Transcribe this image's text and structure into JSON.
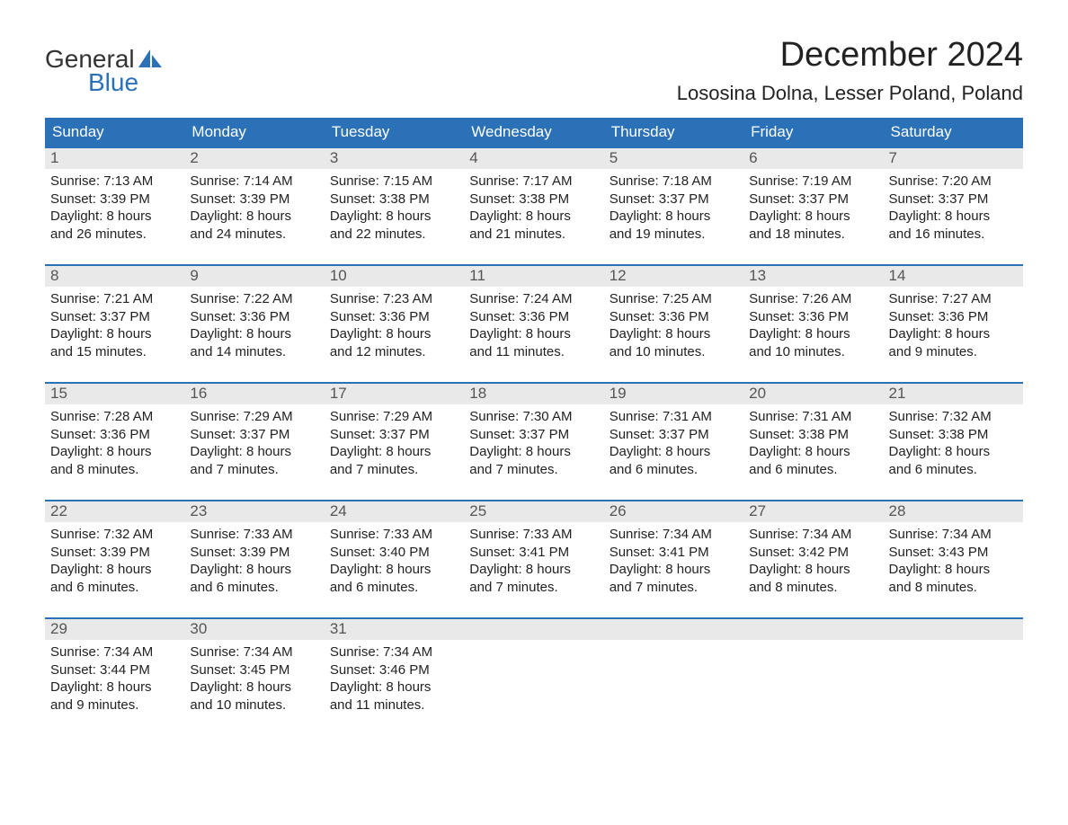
{
  "brand": {
    "general": "General",
    "blue": "Blue",
    "general_color": "#333333",
    "blue_color": "#2b71b8",
    "sail_color": "#2b71b8"
  },
  "title": "December 2024",
  "location": "Lososina Dolna, Lesser Poland, Poland",
  "colors": {
    "header_bg": "#2b71b8",
    "header_text": "#ffffff",
    "daynum_bg": "#e9e9e9",
    "daynum_text": "#555555",
    "body_text": "#222222",
    "week_border": "#2b71b8",
    "page_bg": "#ffffff"
  },
  "fonts": {
    "month_title_size": 38,
    "location_size": 22,
    "weekday_size": 17,
    "daynum_size": 17,
    "body_size": 15
  },
  "weekdays": [
    "Sunday",
    "Monday",
    "Tuesday",
    "Wednesday",
    "Thursday",
    "Friday",
    "Saturday"
  ],
  "weeks": [
    [
      {
        "n": "1",
        "sunrise": "Sunrise: 7:13 AM",
        "sunset": "Sunset: 3:39 PM",
        "d1": "Daylight: 8 hours",
        "d2": "and 26 minutes."
      },
      {
        "n": "2",
        "sunrise": "Sunrise: 7:14 AM",
        "sunset": "Sunset: 3:39 PM",
        "d1": "Daylight: 8 hours",
        "d2": "and 24 minutes."
      },
      {
        "n": "3",
        "sunrise": "Sunrise: 7:15 AM",
        "sunset": "Sunset: 3:38 PM",
        "d1": "Daylight: 8 hours",
        "d2": "and 22 minutes."
      },
      {
        "n": "4",
        "sunrise": "Sunrise: 7:17 AM",
        "sunset": "Sunset: 3:38 PM",
        "d1": "Daylight: 8 hours",
        "d2": "and 21 minutes."
      },
      {
        "n": "5",
        "sunrise": "Sunrise: 7:18 AM",
        "sunset": "Sunset: 3:37 PM",
        "d1": "Daylight: 8 hours",
        "d2": "and 19 minutes."
      },
      {
        "n": "6",
        "sunrise": "Sunrise: 7:19 AM",
        "sunset": "Sunset: 3:37 PM",
        "d1": "Daylight: 8 hours",
        "d2": "and 18 minutes."
      },
      {
        "n": "7",
        "sunrise": "Sunrise: 7:20 AM",
        "sunset": "Sunset: 3:37 PM",
        "d1": "Daylight: 8 hours",
        "d2": "and 16 minutes."
      }
    ],
    [
      {
        "n": "8",
        "sunrise": "Sunrise: 7:21 AM",
        "sunset": "Sunset: 3:37 PM",
        "d1": "Daylight: 8 hours",
        "d2": "and 15 minutes."
      },
      {
        "n": "9",
        "sunrise": "Sunrise: 7:22 AM",
        "sunset": "Sunset: 3:36 PM",
        "d1": "Daylight: 8 hours",
        "d2": "and 14 minutes."
      },
      {
        "n": "10",
        "sunrise": "Sunrise: 7:23 AM",
        "sunset": "Sunset: 3:36 PM",
        "d1": "Daylight: 8 hours",
        "d2": "and 12 minutes."
      },
      {
        "n": "11",
        "sunrise": "Sunrise: 7:24 AM",
        "sunset": "Sunset: 3:36 PM",
        "d1": "Daylight: 8 hours",
        "d2": "and 11 minutes."
      },
      {
        "n": "12",
        "sunrise": "Sunrise: 7:25 AM",
        "sunset": "Sunset: 3:36 PM",
        "d1": "Daylight: 8 hours",
        "d2": "and 10 minutes."
      },
      {
        "n": "13",
        "sunrise": "Sunrise: 7:26 AM",
        "sunset": "Sunset: 3:36 PM",
        "d1": "Daylight: 8 hours",
        "d2": "and 10 minutes."
      },
      {
        "n": "14",
        "sunrise": "Sunrise: 7:27 AM",
        "sunset": "Sunset: 3:36 PM",
        "d1": "Daylight: 8 hours",
        "d2": "and 9 minutes."
      }
    ],
    [
      {
        "n": "15",
        "sunrise": "Sunrise: 7:28 AM",
        "sunset": "Sunset: 3:36 PM",
        "d1": "Daylight: 8 hours",
        "d2": "and 8 minutes."
      },
      {
        "n": "16",
        "sunrise": "Sunrise: 7:29 AM",
        "sunset": "Sunset: 3:37 PM",
        "d1": "Daylight: 8 hours",
        "d2": "and 7 minutes."
      },
      {
        "n": "17",
        "sunrise": "Sunrise: 7:29 AM",
        "sunset": "Sunset: 3:37 PM",
        "d1": "Daylight: 8 hours",
        "d2": "and 7 minutes."
      },
      {
        "n": "18",
        "sunrise": "Sunrise: 7:30 AM",
        "sunset": "Sunset: 3:37 PM",
        "d1": "Daylight: 8 hours",
        "d2": "and 7 minutes."
      },
      {
        "n": "19",
        "sunrise": "Sunrise: 7:31 AM",
        "sunset": "Sunset: 3:37 PM",
        "d1": "Daylight: 8 hours",
        "d2": "and 6 minutes."
      },
      {
        "n": "20",
        "sunrise": "Sunrise: 7:31 AM",
        "sunset": "Sunset: 3:38 PM",
        "d1": "Daylight: 8 hours",
        "d2": "and 6 minutes."
      },
      {
        "n": "21",
        "sunrise": "Sunrise: 7:32 AM",
        "sunset": "Sunset: 3:38 PM",
        "d1": "Daylight: 8 hours",
        "d2": "and 6 minutes."
      }
    ],
    [
      {
        "n": "22",
        "sunrise": "Sunrise: 7:32 AM",
        "sunset": "Sunset: 3:39 PM",
        "d1": "Daylight: 8 hours",
        "d2": "and 6 minutes."
      },
      {
        "n": "23",
        "sunrise": "Sunrise: 7:33 AM",
        "sunset": "Sunset: 3:39 PM",
        "d1": "Daylight: 8 hours",
        "d2": "and 6 minutes."
      },
      {
        "n": "24",
        "sunrise": "Sunrise: 7:33 AM",
        "sunset": "Sunset: 3:40 PM",
        "d1": "Daylight: 8 hours",
        "d2": "and 6 minutes."
      },
      {
        "n": "25",
        "sunrise": "Sunrise: 7:33 AM",
        "sunset": "Sunset: 3:41 PM",
        "d1": "Daylight: 8 hours",
        "d2": "and 7 minutes."
      },
      {
        "n": "26",
        "sunrise": "Sunrise: 7:34 AM",
        "sunset": "Sunset: 3:41 PM",
        "d1": "Daylight: 8 hours",
        "d2": "and 7 minutes."
      },
      {
        "n": "27",
        "sunrise": "Sunrise: 7:34 AM",
        "sunset": "Sunset: 3:42 PM",
        "d1": "Daylight: 8 hours",
        "d2": "and 8 minutes."
      },
      {
        "n": "28",
        "sunrise": "Sunrise: 7:34 AM",
        "sunset": "Sunset: 3:43 PM",
        "d1": "Daylight: 8 hours",
        "d2": "and 8 minutes."
      }
    ],
    [
      {
        "n": "29",
        "sunrise": "Sunrise: 7:34 AM",
        "sunset": "Sunset: 3:44 PM",
        "d1": "Daylight: 8 hours",
        "d2": "and 9 minutes."
      },
      {
        "n": "30",
        "sunrise": "Sunrise: 7:34 AM",
        "sunset": "Sunset: 3:45 PM",
        "d1": "Daylight: 8 hours",
        "d2": "and 10 minutes."
      },
      {
        "n": "31",
        "sunrise": "Sunrise: 7:34 AM",
        "sunset": "Sunset: 3:46 PM",
        "d1": "Daylight: 8 hours",
        "d2": "and 11 minutes."
      },
      {
        "empty": true
      },
      {
        "empty": true
      },
      {
        "empty": true
      },
      {
        "empty": true
      }
    ]
  ]
}
